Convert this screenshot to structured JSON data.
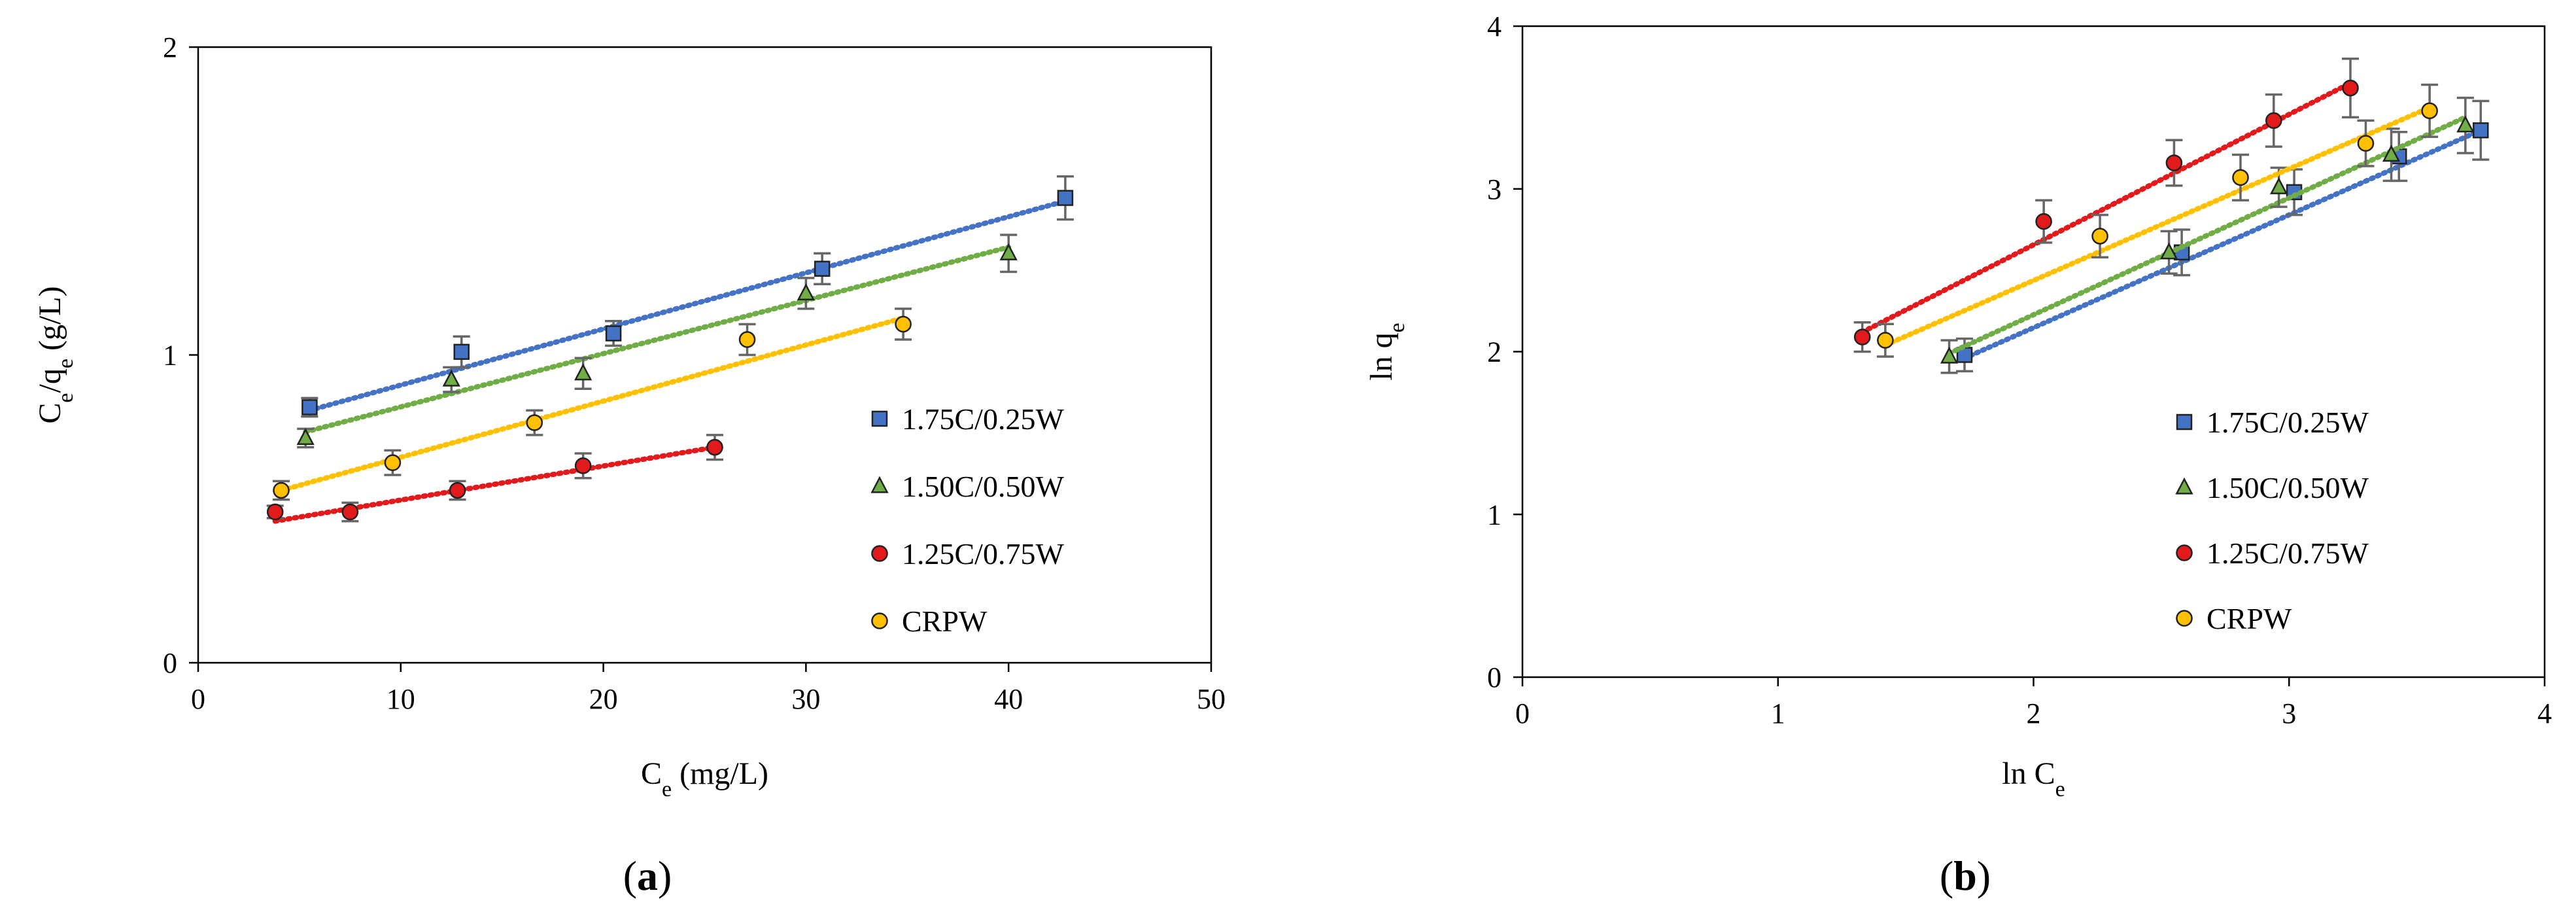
{
  "chart_data": [
    {
      "panel": "(a)",
      "type": "scatter",
      "xlabel": "C_e (mg/L)",
      "ylabel": "C_e/q_e (g/L)",
      "xlim": [
        0,
        50
      ],
      "ylim": [
        0,
        2
      ],
      "xticks": [
        0,
        10,
        20,
        30,
        40,
        50
      ],
      "yticks": [
        0,
        1,
        2
      ],
      "grid": false,
      "trendlines": "linear, dotted",
      "legend_position": "right",
      "series": [
        {
          "name": "1.75C/0.25W",
          "color": "#4472C4",
          "marker": "square",
          "x": [
            5.5,
            13.0,
            20.5,
            30.8,
            42.8
          ],
          "y": [
            0.83,
            1.01,
            1.07,
            1.28,
            1.51
          ],
          "err": [
            0.03,
            0.05,
            0.04,
            0.05,
            0.07
          ],
          "fit_x": [
            5.5,
            42.8
          ],
          "fit_y": [
            0.82,
            1.5
          ]
        },
        {
          "name": "1.50C/0.50W",
          "color": "#70AD47",
          "marker": "triangle",
          "x": [
            5.3,
            12.5,
            19.0,
            30.0,
            40.0
          ],
          "y": [
            0.73,
            0.92,
            0.94,
            1.2,
            1.33
          ],
          "err": [
            0.03,
            0.04,
            0.05,
            0.05,
            0.06
          ],
          "fit_x": [
            5.3,
            40.0
          ],
          "fit_y": [
            0.75,
            1.35
          ]
        },
        {
          "name": "1.25C/0.75W",
          "color": "#E31A1C",
          "marker": "circle",
          "x": [
            3.8,
            7.5,
            12.8,
            19.0,
            25.5
          ],
          "y": [
            0.49,
            0.49,
            0.56,
            0.64,
            0.7
          ],
          "err": [
            0.02,
            0.03,
            0.03,
            0.04,
            0.04
          ],
          "fit_x": [
            3.8,
            25.5
          ],
          "fit_y": [
            0.46,
            0.7
          ]
        },
        {
          "name": "CRPW",
          "color": "#FFC000",
          "marker": "circle",
          "x": [
            4.1,
            9.6,
            16.6,
            27.1,
            34.8
          ],
          "y": [
            0.56,
            0.65,
            0.78,
            1.05,
            1.1
          ],
          "err": [
            0.03,
            0.04,
            0.04,
            0.05,
            0.05
          ],
          "fit_x": [
            4.1,
            34.8
          ],
          "fit_y": [
            0.56,
            1.12
          ]
        }
      ]
    },
    {
      "panel": "(b)",
      "type": "scatter",
      "xlabel": "ln C_e",
      "ylabel": "ln q_e",
      "xlim": [
        0,
        4
      ],
      "ylim": [
        0,
        4
      ],
      "xticks": [
        0,
        1,
        2,
        3,
        4
      ],
      "yticks": [
        0,
        1,
        2,
        3,
        4
      ],
      "grid": false,
      "trendlines": "linear, dotted",
      "legend_position": "right",
      "series": [
        {
          "name": "1.75C/0.25W",
          "color": "#4472C4",
          "marker": "square",
          "x": [
            1.73,
            2.58,
            3.02,
            3.43,
            3.75
          ],
          "y": [
            1.98,
            2.61,
            2.98,
            3.2,
            3.36
          ],
          "err": [
            0.1,
            0.14,
            0.14,
            0.15,
            0.18
          ],
          "fit_x": [
            1.73,
            3.75
          ],
          "fit_y": [
            1.96,
            3.36
          ]
        },
        {
          "name": "1.50C/0.50W",
          "color": "#70AD47",
          "marker": "triangle",
          "x": [
            1.67,
            2.53,
            2.96,
            3.4,
            3.69
          ],
          "y": [
            1.97,
            2.61,
            3.01,
            3.21,
            3.39
          ],
          "err": [
            0.1,
            0.13,
            0.12,
            0.16,
            0.17
          ],
          "fit_x": [
            1.67,
            3.69
          ],
          "fit_y": [
            1.99,
            3.44
          ]
        },
        {
          "name": "1.25C/0.75W",
          "color": "#E31A1C",
          "marker": "circle",
          "x": [
            1.33,
            2.04,
            2.55,
            2.94,
            3.24
          ],
          "y": [
            2.09,
            2.8,
            3.16,
            3.42,
            3.62
          ],
          "err": [
            0.09,
            0.13,
            0.14,
            0.16,
            0.18
          ],
          "fit_x": [
            1.33,
            3.24
          ],
          "fit_y": [
            2.12,
            3.65
          ]
        },
        {
          "name": "CRPW",
          "color": "#FFC000",
          "marker": "circle",
          "x": [
            1.42,
            2.26,
            2.81,
            3.3,
            3.55
          ],
          "y": [
            2.07,
            2.71,
            3.07,
            3.28,
            3.48
          ],
          "err": [
            0.1,
            0.13,
            0.14,
            0.14,
            0.16
          ],
          "fit_x": [
            1.42,
            3.55
          ],
          "fit_y": [
            2.04,
            3.5
          ]
        }
      ]
    }
  ]
}
